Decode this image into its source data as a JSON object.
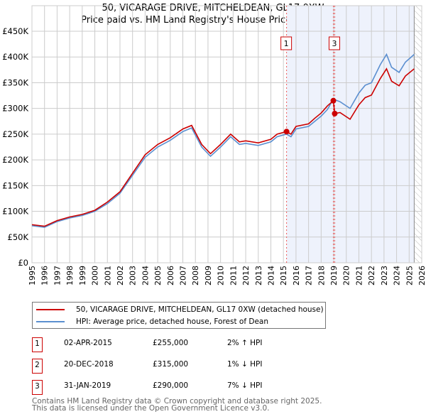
{
  "title_line1": "50, VICARAGE DRIVE, MITCHELDEAN, GL17 0XW",
  "title_line2": "Price paid vs. HM Land Registry's House Price Index (HPI)",
  "chart_data": {
    "type": "line",
    "xlim": [
      1995,
      2026
    ],
    "ylim": [
      0,
      450000
    ],
    "x_ticks": [
      1995,
      1996,
      1997,
      1998,
      1999,
      2000,
      2001,
      2002,
      2003,
      2004,
      2005,
      2006,
      2007,
      2008,
      2009,
      2010,
      2011,
      2012,
      2013,
      2014,
      2015,
      2016,
      2017,
      2018,
      2019,
      2020,
      2021,
      2022,
      2023,
      2024,
      2025,
      2026
    ],
    "y_ticks": [
      {
        "v": 0,
        "label": "£0"
      },
      {
        "v": 50000,
        "label": "£50K"
      },
      {
        "v": 100000,
        "label": "£100K"
      },
      {
        "v": 150000,
        "label": "£150K"
      },
      {
        "v": 200000,
        "label": "£200K"
      },
      {
        "v": 250000,
        "label": "£250K"
      },
      {
        "v": 300000,
        "label": "£300K"
      },
      {
        "v": 350000,
        "label": "£350K"
      },
      {
        "v": 400000,
        "label": "£400K"
      },
      {
        "v": 450000,
        "label": "£450K"
      }
    ],
    "grid": true,
    "shaded_from": 2015.25,
    "hatched_from": 2025.4,
    "series": [
      {
        "name": "50, VICARAGE DRIVE, MITCHELDEAN, GL17 0XW (detached house)",
        "color": "#cc0000",
        "points": [
          [
            1995,
            74000
          ],
          [
            1996,
            71000
          ],
          [
            1997,
            82000
          ],
          [
            1998,
            89000
          ],
          [
            1999,
            94000
          ],
          [
            2000,
            102000
          ],
          [
            2001,
            118000
          ],
          [
            2002,
            138000
          ],
          [
            2003,
            174000
          ],
          [
            2004,
            210000
          ],
          [
            2005,
            230000
          ],
          [
            2006,
            243000
          ],
          [
            2007,
            260000
          ],
          [
            2007.7,
            267000
          ],
          [
            2008.5,
            230000
          ],
          [
            2009.2,
            212000
          ],
          [
            2010,
            230000
          ],
          [
            2010.8,
            250000
          ],
          [
            2011.5,
            235000
          ],
          [
            2012,
            237000
          ],
          [
            2013,
            233000
          ],
          [
            2014,
            240000
          ],
          [
            2014.5,
            250000
          ],
          [
            2015.25,
            255000
          ],
          [
            2015.6,
            250000
          ],
          [
            2016,
            265000
          ],
          [
            2017,
            270000
          ],
          [
            2017.5,
            281000
          ],
          [
            2018,
            291000
          ],
          [
            2018.5,
            305000
          ],
          [
            2018.97,
            315000
          ],
          [
            2019.08,
            290000
          ],
          [
            2019.5,
            292000
          ],
          [
            2020.3,
            279000
          ],
          [
            2021,
            307000
          ],
          [
            2021.5,
            321000
          ],
          [
            2022,
            326000
          ],
          [
            2022.7,
            358000
          ],
          [
            2023.2,
            377000
          ],
          [
            2023.6,
            353000
          ],
          [
            2024.2,
            344000
          ],
          [
            2024.7,
            363000
          ],
          [
            2025.4,
            377000
          ]
        ]
      },
      {
        "name": "HPI: Average price, detached house, Forest of Dean",
        "color": "#5b8fd0",
        "points": [
          [
            1995,
            72000
          ],
          [
            1996,
            69000
          ],
          [
            1997,
            80000
          ],
          [
            1998,
            87000
          ],
          [
            1999,
            92000
          ],
          [
            2000,
            100000
          ],
          [
            2001,
            115000
          ],
          [
            2002,
            135000
          ],
          [
            2003,
            170000
          ],
          [
            2004,
            205000
          ],
          [
            2005,
            225000
          ],
          [
            2006,
            238000
          ],
          [
            2007,
            255000
          ],
          [
            2007.7,
            262000
          ],
          [
            2008.5,
            225000
          ],
          [
            2009.2,
            207000
          ],
          [
            2010,
            225000
          ],
          [
            2010.8,
            245000
          ],
          [
            2011.5,
            230000
          ],
          [
            2012,
            232000
          ],
          [
            2013,
            228000
          ],
          [
            2014,
            235000
          ],
          [
            2014.5,
            245000
          ],
          [
            2015.25,
            250000
          ],
          [
            2015.6,
            245000
          ],
          [
            2016,
            260000
          ],
          [
            2017,
            265000
          ],
          [
            2017.5,
            275000
          ],
          [
            2018,
            285000
          ],
          [
            2018.5,
            298000
          ],
          [
            2018.97,
            318000
          ],
          [
            2019.5,
            313000
          ],
          [
            2020.3,
            300000
          ],
          [
            2021,
            330000
          ],
          [
            2021.5,
            345000
          ],
          [
            2022,
            350000
          ],
          [
            2022.7,
            385000
          ],
          [
            2023.2,
            405000
          ],
          [
            2023.6,
            380000
          ],
          [
            2024.2,
            370000
          ],
          [
            2024.7,
            390000
          ],
          [
            2025.4,
            405000
          ]
        ]
      }
    ],
    "sales": [
      {
        "id": "1",
        "x": 2015.25,
        "price": 255000,
        "show_label": true
      },
      {
        "id": "2",
        "x": 2018.97,
        "price": 315000,
        "show_label": false
      },
      {
        "id": "3",
        "x": 2019.08,
        "price": 290000,
        "show_label": true
      }
    ]
  },
  "legend": {
    "red": "50, VICARAGE DRIVE, MITCHELDEAN, GL17 0XW (detached house)",
    "blue": "HPI: Average price, detached house, Forest of Dean"
  },
  "table": [
    {
      "id": "1",
      "date": "02-APR-2015",
      "price": "£255,000",
      "hpi": "2% ↑ HPI"
    },
    {
      "id": "2",
      "date": "20-DEC-2018",
      "price": "£315,000",
      "hpi": "1% ↓ HPI"
    },
    {
      "id": "3",
      "date": "31-JAN-2019",
      "price": "£290,000",
      "hpi": "7% ↓ HPI"
    }
  ],
  "footer1": "Contains HM Land Registry data © Crown copyright and database right 2025.",
  "footer2": "This data is licensed under the Open Government Licence v3.0."
}
